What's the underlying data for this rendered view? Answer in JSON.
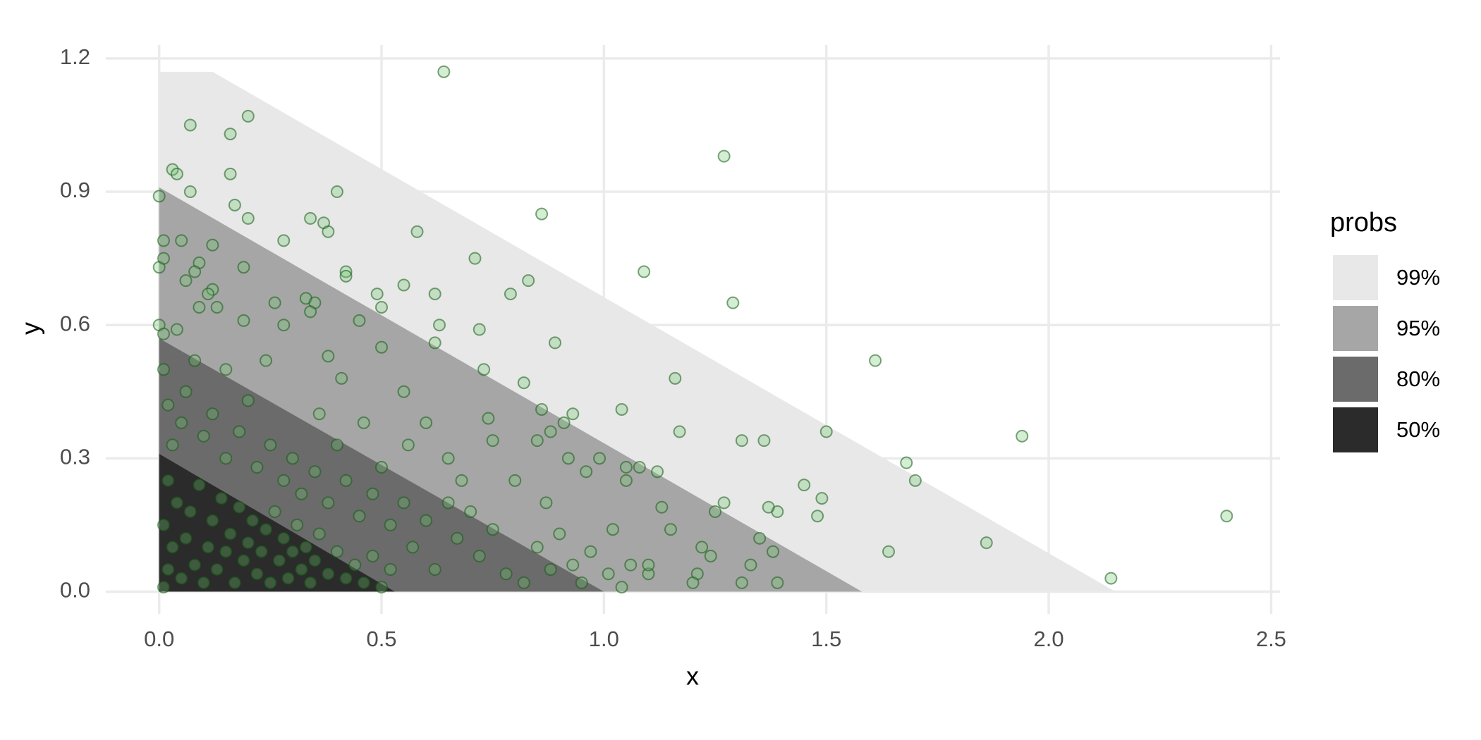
{
  "chart_data": {
    "type": "scatter",
    "x_label": "x",
    "y_label": "y",
    "legend_title": "probs",
    "legend_position": "right",
    "grid": true,
    "xlim": [
      -0.12,
      2.52
    ],
    "ylim": [
      -0.05,
      1.23
    ],
    "xticks": [
      {
        "value": 0,
        "label": "0.0"
      },
      0.5,
      {
        "value": 1,
        "label": "1.0"
      },
      1.5,
      {
        "value": 2,
        "label": "2.0"
      },
      2.5
    ],
    "yticks": [
      {
        "value": 0,
        "label": "0.0"
      },
      0.3,
      0.6,
      0.9,
      1.2
    ],
    "regions": [
      {
        "name": "99%",
        "color": "#e8e8e8",
        "x": [
          0,
          0,
          0.12,
          2.15
        ],
        "y": [
          0,
          1.17,
          1.17,
          0
        ]
      },
      {
        "name": "95%",
        "color": "#a6a6a6",
        "x": [
          0,
          0,
          1.58
        ],
        "y": [
          0,
          0.91,
          0
        ]
      },
      {
        "name": "80%",
        "color": "#6b6b6b",
        "x": [
          0,
          0,
          1.0
        ],
        "y": [
          0,
          0.57,
          0
        ]
      },
      {
        "name": "50%",
        "color": "#2b2b2b",
        "x": [
          0,
          0,
          0.53
        ],
        "y": [
          0,
          0.31,
          0
        ]
      }
    ],
    "x": [
      0.64,
      1.27,
      0.86,
      1.09,
      1.29,
      1.61,
      1.94,
      2.4,
      2.14,
      1.86,
      1.7,
      1.68,
      1.64,
      1.5,
      1.49,
      1.48,
      1.45,
      1.39,
      1.38,
      1.39,
      1.36,
      1.31,
      1.35,
      1.37,
      1.33,
      1.31,
      1.27,
      1.25,
      1.24,
      1.22,
      1.21,
      1.2,
      1.16,
      1.17,
      1.15,
      1.12,
      1.13,
      1.1,
      1.1,
      1.08,
      1.04,
      1.05,
      1.05,
      1.06,
      1.04,
      1.02,
      1.01,
      0.99,
      0.97,
      0.96,
      0.93,
      0.92,
      0.91,
      0.89,
      0.87,
      0.88,
      0.86,
      0.85,
      0.83,
      0.82,
      0.79,
      0.71,
      0.72,
      0.73,
      0.74,
      0.75,
      0.58,
      0.62,
      0.63,
      0.62,
      0.55,
      0.49,
      0.5,
      0.4,
      0.37,
      0.34,
      0.38,
      0.2,
      0.16,
      0.07,
      0.16,
      0.03,
      0.04,
      0.0,
      0.07,
      0.17,
      0.2,
      0.28,
      0.42,
      0.42,
      0.01,
      0.05,
      0.12,
      0.19,
      0.0,
      0.01,
      0.09,
      0.08,
      0.12,
      0.06,
      0.11,
      0.13,
      0.33,
      0.35,
      0.26,
      0.0,
      0.01,
      0.04,
      0.09,
      0.28,
      0.19,
      0.45,
      0.34,
      0.01,
      0.02,
      0.03,
      0.01,
      0.04,
      0.02,
      0.05,
      0.06,
      0.07,
      0.08,
      0.09,
      0.1,
      0.11,
      0.12,
      0.13,
      0.14,
      0.15,
      0.16,
      0.17,
      0.18,
      0.19,
      0.2,
      0.21,
      0.22,
      0.23,
      0.24,
      0.25,
      0.26,
      0.27,
      0.28,
      0.29,
      0.3,
      0.31,
      0.32,
      0.33,
      0.34,
      0.35,
      0.36,
      0.38,
      0.4,
      0.42,
      0.44,
      0.46,
      0.48,
      0.5,
      0.52,
      0.03,
      0.05,
      0.02,
      0.06,
      0.1,
      0.12,
      0.15,
      0.18,
      0.2,
      0.22,
      0.25,
      0.28,
      0.3,
      0.32,
      0.35,
      0.38,
      0.4,
      0.42,
      0.45,
      0.48,
      0.5,
      0.52,
      0.55,
      0.57,
      0.6,
      0.62,
      0.65,
      0.67,
      0.7,
      0.72,
      0.75,
      0.78,
      0.8,
      0.82,
      0.85,
      0.88,
      0.9,
      0.93,
      0.95,
      0.24,
      0.38,
      0.41,
      0.5,
      0.55,
      0.6,
      0.65,
      0.68,
      0.15,
      0.08,
      0.01,
      0.36,
      0.46,
      0.56
    ],
    "y": [
      1.17,
      0.98,
      0.85,
      0.72,
      0.65,
      0.52,
      0.35,
      0.17,
      0.03,
      0.11,
      0.25,
      0.29,
      0.09,
      0.36,
      0.21,
      0.17,
      0.24,
      0.18,
      0.09,
      0.02,
      0.34,
      0.34,
      0.12,
      0.19,
      0.06,
      0.02,
      0.2,
      0.18,
      0.08,
      0.1,
      0.04,
      0.02,
      0.48,
      0.36,
      0.14,
      0.27,
      0.19,
      0.04,
      0.06,
      0.28,
      0.41,
      0.28,
      0.25,
      0.06,
      0.01,
      0.14,
      0.04,
      0.3,
      0.09,
      0.27,
      0.4,
      0.3,
      0.38,
      0.56,
      0.2,
      0.36,
      0.41,
      0.34,
      0.7,
      0.47,
      0.67,
      0.75,
      0.59,
      0.5,
      0.39,
      0.34,
      0.81,
      0.67,
      0.6,
      0.56,
      0.69,
      0.67,
      0.64,
      0.9,
      0.83,
      0.84,
      0.81,
      1.07,
      1.03,
      1.05,
      0.94,
      0.95,
      0.94,
      0.89,
      0.9,
      0.87,
      0.84,
      0.79,
      0.72,
      0.71,
      0.79,
      0.79,
      0.78,
      0.73,
      0.73,
      0.75,
      0.74,
      0.72,
      0.68,
      0.7,
      0.67,
      0.64,
      0.66,
      0.65,
      0.65,
      0.6,
      0.58,
      0.59,
      0.64,
      0.6,
      0.61,
      0.61,
      0.63,
      0.01,
      0.05,
      0.1,
      0.15,
      0.2,
      0.25,
      0.03,
      0.12,
      0.18,
      0.06,
      0.24,
      0.02,
      0.1,
      0.16,
      0.05,
      0.21,
      0.09,
      0.13,
      0.02,
      0.19,
      0.07,
      0.11,
      0.16,
      0.04,
      0.09,
      0.14,
      0.02,
      0.18,
      0.07,
      0.12,
      0.03,
      0.09,
      0.15,
      0.05,
      0.1,
      0.02,
      0.07,
      0.13,
      0.04,
      0.09,
      0.03,
      0.06,
      0.02,
      0.08,
      0.01,
      0.05,
      0.33,
      0.38,
      0.42,
      0.45,
      0.35,
      0.4,
      0.3,
      0.36,
      0.43,
      0.28,
      0.33,
      0.25,
      0.3,
      0.22,
      0.27,
      0.2,
      0.33,
      0.25,
      0.17,
      0.22,
      0.28,
      0.15,
      0.2,
      0.1,
      0.16,
      0.05,
      0.2,
      0.12,
      0.18,
      0.08,
      0.14,
      0.04,
      0.25,
      0.02,
      0.1,
      0.05,
      0.13,
      0.06,
      0.02,
      0.52,
      0.53,
      0.48,
      0.55,
      0.45,
      0.38,
      0.3,
      0.25,
      0.5,
      0.52,
      0.5,
      0.4,
      0.38,
      0.33
    ]
  }
}
